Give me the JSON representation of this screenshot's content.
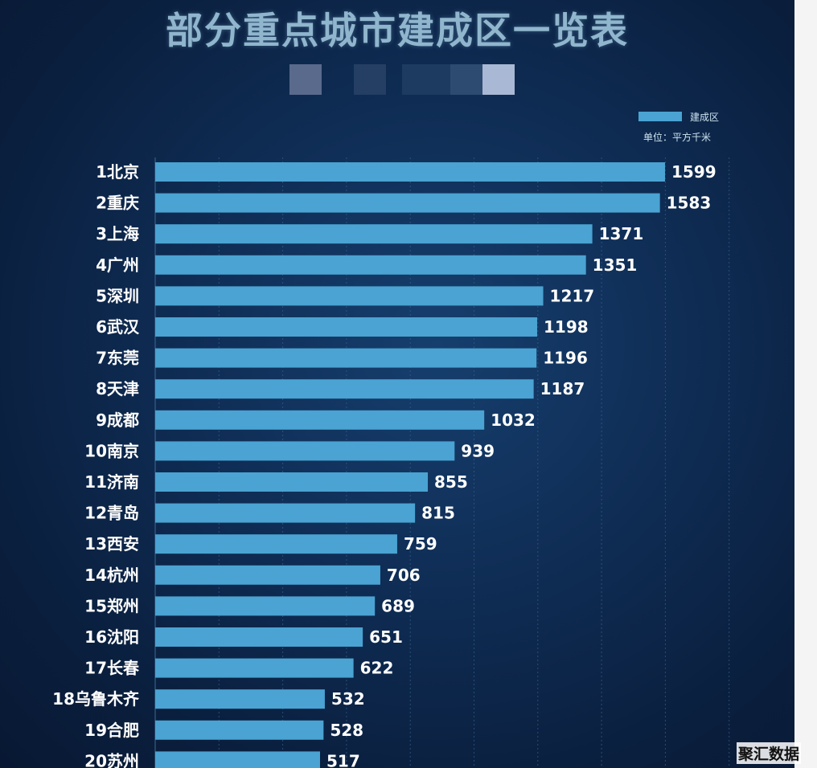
{
  "chart_data": {
    "type": "bar",
    "orientation": "horizontal",
    "title": "部分重点城市建成区一览表",
    "legend": {
      "entries": [
        "建成区"
      ],
      "position": "top-right"
    },
    "unit": "单位：平方千米",
    "categories": [
      "1北京",
      "2重庆",
      "3上海",
      "4广州",
      "5深圳",
      "6武汉",
      "7东莞",
      "8天津",
      "9成都",
      "10南京",
      "11济南",
      "12青岛",
      "13西安",
      "14杭州",
      "15郑州",
      "16沈阳",
      "17长春",
      "18乌鲁木齐",
      "19合肥",
      "20苏州"
    ],
    "series": [
      {
        "name": "建成区",
        "values": [
          1599,
          1583,
          1371,
          1351,
          1217,
          1198,
          1196,
          1187,
          1032,
          939,
          855,
          815,
          759,
          706,
          689,
          651,
          622,
          532,
          528,
          517
        ]
      }
    ],
    "xlim": [
      0,
      1800
    ],
    "grid": true,
    "colors": {
      "bar": "#4aa3d2",
      "background": "#0f2d55",
      "text": "#ffffff",
      "title": "#9fc6dc"
    }
  },
  "watermark": "聚汇数据"
}
